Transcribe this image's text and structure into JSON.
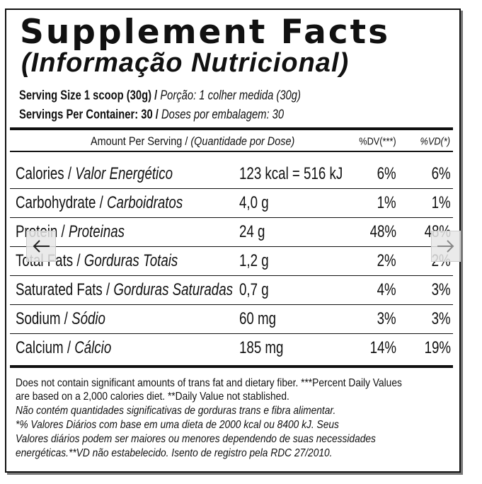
{
  "title": "Supplement Facts",
  "subtitle": "(Informação Nutricional)",
  "serving": [
    {
      "en": "Serving Size 1 scoop (30g) /",
      "pt": "Porção: 1 colher medida (30g)"
    },
    {
      "en": "Servings Per Container: 30 /",
      "pt": "Doses por embalagem: 30"
    }
  ],
  "header": {
    "amount_en": "Amount Per Serving /",
    "amount_pt": "(Quantidade por Dose)",
    "dv": "%DV(***)",
    "vd": "%VD(*)"
  },
  "rows": [
    {
      "en": "Calories /",
      "pt": "Valor Energético",
      "amount": "123 kcal = 516 kJ",
      "dv": "6%",
      "vd": "6%"
    },
    {
      "en": "Carbohydrate /",
      "pt": "Carboidratos",
      "amount": "4,0 g",
      "dv": "1%",
      "vd": "1%"
    },
    {
      "en": "Protein /",
      "pt": "Proteinas",
      "amount": "24 g",
      "dv": "48%",
      "vd": "48%"
    },
    {
      "en": "Total Fats /",
      "pt": "Gorduras Totais",
      "amount": "1,2 g",
      "dv": "2%",
      "vd": "2%"
    },
    {
      "en": "Saturated Fats /",
      "pt": "Gorduras Saturadas",
      "amount": "0,7 g",
      "dv": "4%",
      "vd": "3%"
    },
    {
      "en": "Sodium /",
      "pt": "Sódio",
      "amount": "60 mg",
      "dv": "3%",
      "vd": "3%"
    },
    {
      "en": "Calcium /",
      "pt": "Cálcio",
      "amount": "185 mg",
      "dv": "14%",
      "vd": "19%"
    }
  ],
  "footnote_en": [
    "Does not contain significant amounts of trans fat and dietary fiber. ***Percent Daily Values",
    "are based on a 2,000 calories diet. **Daily Value not stablished."
  ],
  "footnote_pt": [
    "Não contém quantidades significativas de gorduras trans e fibra alimentar.",
    "*% Valores Diários com base em uma dieta de 2000 kcal ou 8400 kJ. Seus",
    "Valores diários podem ser maiores ou menores dependendo de suas necessidades",
    "energéticas.**VD não estabelecido. Isento de registro pela RDC 27/2010."
  ]
}
